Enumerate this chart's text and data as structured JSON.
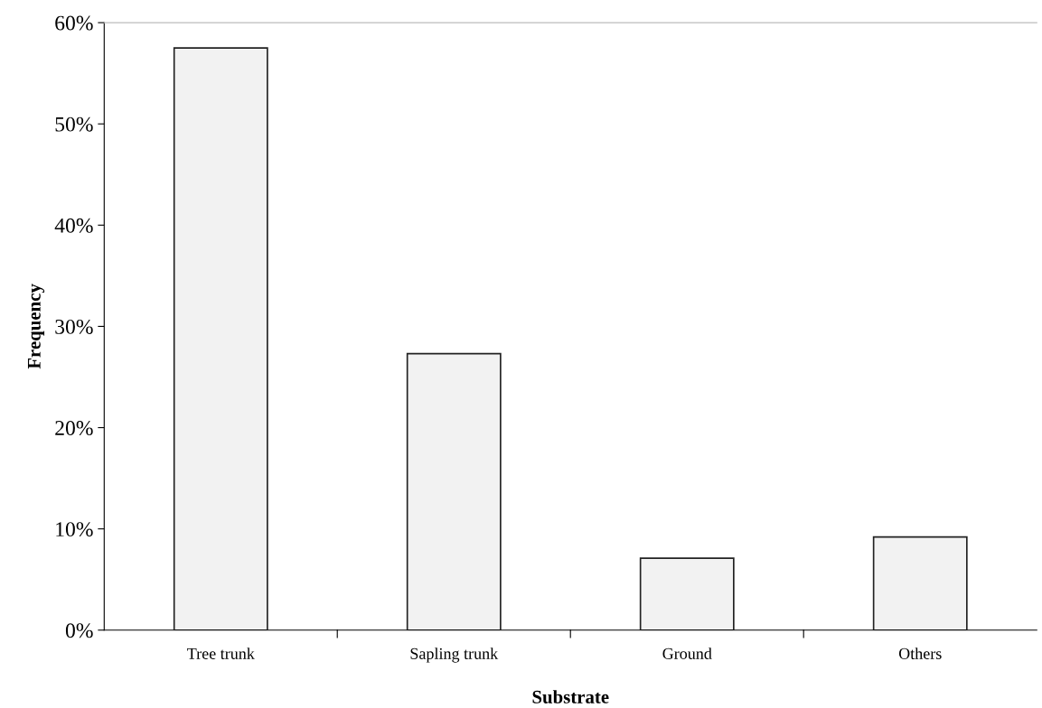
{
  "chart_data": {
    "type": "bar",
    "xlabel": "Substrate",
    "ylabel": "Frequency",
    "categories": [
      "Tree trunk",
      "Sapling trunk",
      "Ground",
      "Others"
    ],
    "values": [
      57.5,
      27.3,
      7.1,
      9.2
    ],
    "color": "#f2f2f2",
    "ylim": [
      0,
      60
    ],
    "yticks": [
      {
        "value": 0,
        "label": "0%"
      },
      {
        "value": 10,
        "label": "10%"
      },
      {
        "value": 20,
        "label": "20%"
      },
      {
        "value": 30,
        "label": "30%"
      },
      {
        "value": 40,
        "label": "40%"
      },
      {
        "value": 50,
        "label": "50%"
      },
      {
        "value": 60,
        "label": "60%"
      }
    ],
    "grid": false,
    "legend": false
  }
}
